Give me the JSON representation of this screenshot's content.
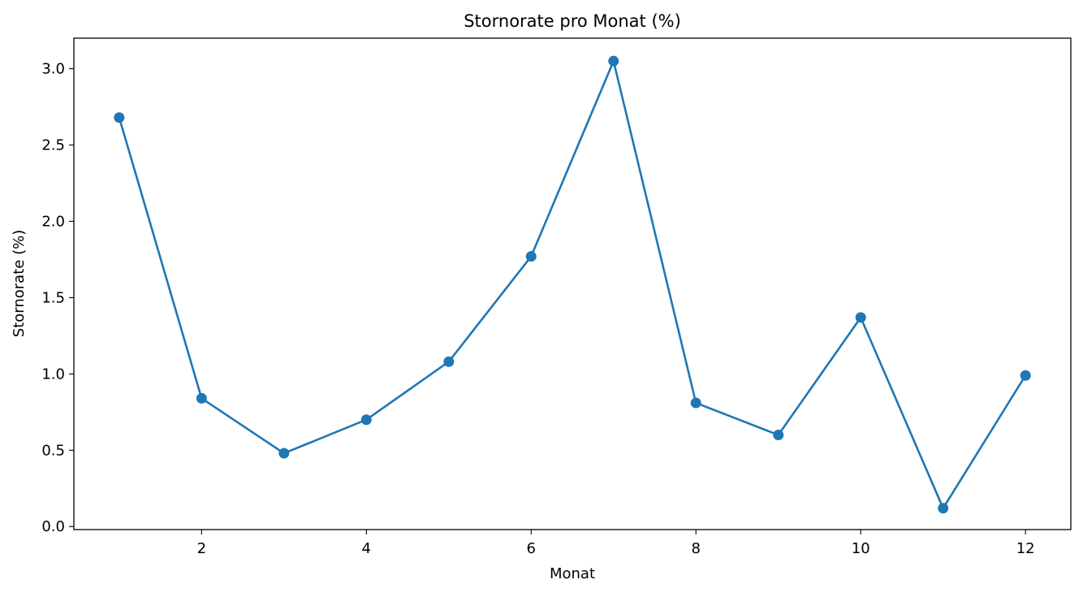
{
  "chart_data": {
    "type": "line",
    "title": "Stornorate pro Monat (%)",
    "xlabel": "Monat",
    "ylabel": "Stornorate (%)",
    "x": [
      1,
      2,
      3,
      4,
      5,
      6,
      7,
      8,
      9,
      10,
      11,
      12
    ],
    "series": [
      {
        "values": [
          2.68,
          0.84,
          0.48,
          0.7,
          1.08,
          1.77,
          3.05,
          0.81,
          0.6,
          1.37,
          0.12,
          0.99
        ]
      }
    ],
    "xlim": [
      0.45,
      12.55
    ],
    "ylim": [
      -0.02,
      3.2
    ],
    "xticks": [
      2,
      4,
      6,
      8,
      10,
      12
    ],
    "xtick_labels": [
      "2",
      "4",
      "6",
      "8",
      "10",
      "12"
    ],
    "yticks": [
      0.0,
      0.5,
      1.0,
      1.5,
      2.0,
      2.5,
      3.0
    ],
    "ytick_labels": [
      "0.0",
      "0.5",
      "1.0",
      "1.5",
      "2.0",
      "2.5",
      "3.0"
    ],
    "grid": false,
    "legend": false,
    "line_color": "#1f77b4",
    "marker": "circle"
  }
}
